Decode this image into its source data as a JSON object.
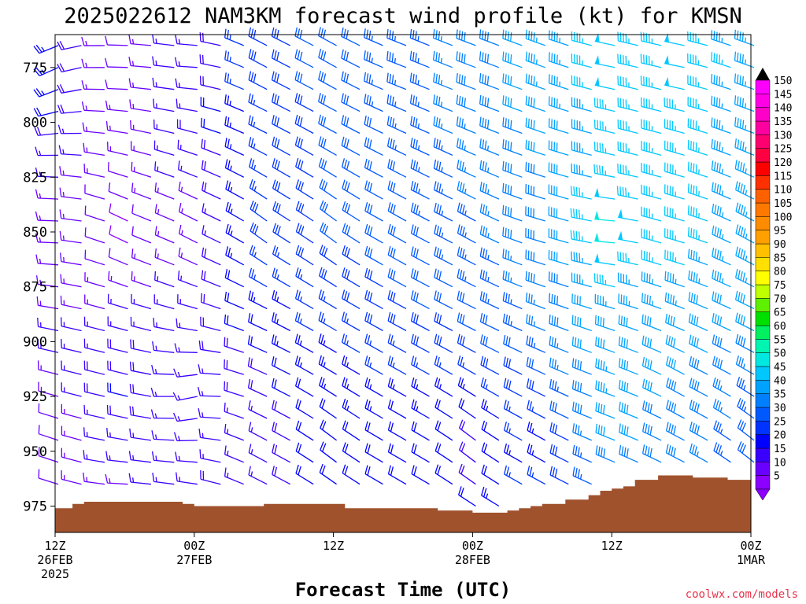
{
  "chart_data": {
    "type": "wind_barb_time_height",
    "title": "2025022612 NAM3KM forecast wind profile (kt) for KMSN",
    "xlabel": "Forecast Time (UTC)",
    "credit": "coolwx.com/models",
    "y_axis": {
      "label": "",
      "ticks": [
        "775",
        "800",
        "825",
        "850",
        "875",
        "900",
        "925",
        "950",
        "975"
      ],
      "range": [
        987,
        760
      ],
      "unit": "hPa"
    },
    "x_axis": {
      "range_hours": [
        0,
        60
      ],
      "ticks": [
        {
          "hour": 0,
          "lines": [
            "12Z",
            "26FEB",
            "2025"
          ]
        },
        {
          "hour": 12,
          "lines": [
            "00Z",
            "27FEB"
          ]
        },
        {
          "hour": 24,
          "lines": [
            "12Z"
          ]
        },
        {
          "hour": 36,
          "lines": [
            "00Z",
            "28FEB"
          ]
        },
        {
          "hour": 48,
          "lines": [
            "12Z"
          ]
        },
        {
          "hour": 60,
          "lines": [
            "00Z",
            "1MAR"
          ]
        }
      ]
    },
    "colorbar": {
      "levels": [
        "5",
        "10",
        "15",
        "20",
        "25",
        "30",
        "35",
        "40",
        "45",
        "50",
        "55",
        "60",
        "65",
        "70",
        "75",
        "80",
        "85",
        "90",
        "95",
        "100",
        "105",
        "110",
        "115",
        "120",
        "125",
        "130",
        "135",
        "140",
        "145",
        "150"
      ],
      "colors": [
        "#8b00ff",
        "#6a00ff",
        "#3a00ff",
        "#0000ff",
        "#0033ff",
        "#0059ff",
        "#007fff",
        "#00a2ff",
        "#00c8ff",
        "#00e8e0",
        "#00f5b0",
        "#00f060",
        "#00e000",
        "#5fef00",
        "#bfff00",
        "#ffff00",
        "#ffe000",
        "#ffc000",
        "#ffa000",
        "#ff8c00",
        "#ff7800",
        "#ff6000",
        "#ff3000",
        "#ff0000",
        "#ff0040",
        "#ff0070",
        "#ff00a0",
        "#ff00c8",
        "#ff00e6",
        "#ff00ff"
      ]
    },
    "surface_pressure": [
      {
        "h": 0,
        "p": 976
      },
      {
        "h": 1,
        "p": 976
      },
      {
        "h": 1.5,
        "p": 974
      },
      {
        "h": 2.5,
        "p": 973
      },
      {
        "h": 8,
        "p": 973
      },
      {
        "h": 11,
        "p": 974
      },
      {
        "h": 12,
        "p": 975
      },
      {
        "h": 17,
        "p": 975
      },
      {
        "h": 18,
        "p": 974
      },
      {
        "h": 24,
        "p": 974
      },
      {
        "h": 25,
        "p": 976
      },
      {
        "h": 32,
        "p": 976
      },
      {
        "h": 33,
        "p": 977
      },
      {
        "h": 36,
        "p": 978
      },
      {
        "h": 39,
        "p": 977
      },
      {
        "h": 40,
        "p": 976
      },
      {
        "h": 41,
        "p": 975
      },
      {
        "h": 42,
        "p": 974
      },
      {
        "h": 44,
        "p": 972
      },
      {
        "h": 46,
        "p": 970
      },
      {
        "h": 47,
        "p": 968
      },
      {
        "h": 48,
        "p": 967
      },
      {
        "h": 49,
        "p": 966
      },
      {
        "h": 50,
        "p": 963
      },
      {
        "h": 52,
        "p": 961
      },
      {
        "h": 55,
        "p": 962
      },
      {
        "h": 58,
        "p": 963
      },
      {
        "h": 60,
        "p": 964
      }
    ],
    "wind_samples": [
      {
        "h": 0,
        "p": 775,
        "dir": 240,
        "spd": 25
      },
      {
        "h": 0,
        "p": 850,
        "dir": 270,
        "spd": 12
      },
      {
        "h": 0,
        "p": 950,
        "dir": 290,
        "spd": 10
      },
      {
        "h": 6,
        "p": 775,
        "dir": 270,
        "spd": 8
      },
      {
        "h": 6,
        "p": 850,
        "dir": 300,
        "spd": 6
      },
      {
        "h": 6,
        "p": 925,
        "dir": 285,
        "spd": 22
      },
      {
        "h": 6,
        "p": 970,
        "dir": 270,
        "spd": 12
      },
      {
        "h": 12,
        "p": 775,
        "dir": 270,
        "spd": 15
      },
      {
        "h": 12,
        "p": 850,
        "dir": 300,
        "spd": 10
      },
      {
        "h": 12,
        "p": 925,
        "dir": 250,
        "spd": 14
      },
      {
        "h": 18,
        "p": 775,
        "dir": 300,
        "spd": 30
      },
      {
        "h": 18,
        "p": 850,
        "dir": 310,
        "spd": 30
      },
      {
        "h": 18,
        "p": 950,
        "dir": 300,
        "spd": 14
      },
      {
        "h": 24,
        "p": 775,
        "dir": 300,
        "spd": 33
      },
      {
        "h": 24,
        "p": 850,
        "dir": 310,
        "spd": 32
      },
      {
        "h": 24,
        "p": 950,
        "dir": 310,
        "spd": 20
      },
      {
        "h": 30,
        "p": 775,
        "dir": 290,
        "spd": 35
      },
      {
        "h": 30,
        "p": 850,
        "dir": 300,
        "spd": 33
      },
      {
        "h": 30,
        "p": 950,
        "dir": 300,
        "spd": 20
      },
      {
        "h": 36,
        "p": 775,
        "dir": 290,
        "spd": 40
      },
      {
        "h": 36,
        "p": 850,
        "dir": 300,
        "spd": 35
      },
      {
        "h": 36,
        "p": 950,
        "dir": 310,
        "spd": 15
      },
      {
        "h": 42,
        "p": 775,
        "dir": 290,
        "spd": 45
      },
      {
        "h": 42,
        "p": 850,
        "dir": 285,
        "spd": 40
      },
      {
        "h": 42,
        "p": 950,
        "dir": 300,
        "spd": 22
      },
      {
        "h": 48,
        "p": 775,
        "dir": 280,
        "spd": 50
      },
      {
        "h": 48,
        "p": 850,
        "dir": 270,
        "spd": 55
      },
      {
        "h": 48,
        "p": 925,
        "dir": 290,
        "spd": 45
      },
      {
        "h": 54,
        "p": 775,
        "dir": 280,
        "spd": 50
      },
      {
        "h": 54,
        "p": 850,
        "dir": 285,
        "spd": 48
      },
      {
        "h": 54,
        "p": 925,
        "dir": 300,
        "spd": 40
      },
      {
        "h": 60,
        "p": 775,
        "dir": 290,
        "spd": 45
      },
      {
        "h": 60,
        "p": 850,
        "dir": 300,
        "spd": 45
      },
      {
        "h": 60,
        "p": 950,
        "dir": 310,
        "spd": 30
      }
    ]
  }
}
